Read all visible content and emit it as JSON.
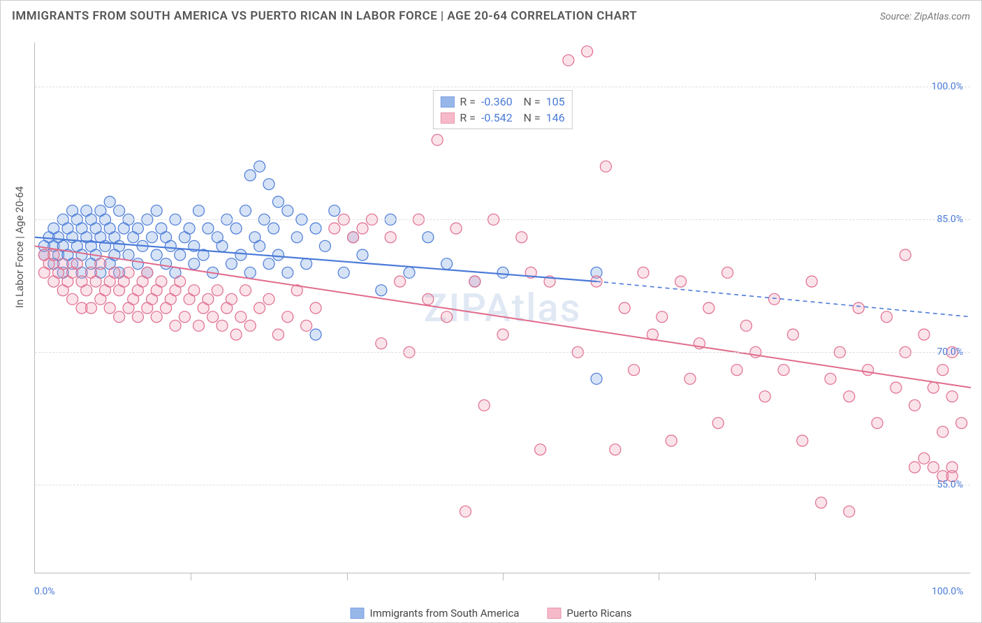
{
  "title": "IMMIGRANTS FROM SOUTH AMERICA VS PUERTO RICAN IN LABOR FORCE | AGE 20-64 CORRELATION CHART",
  "source": "Source: ZipAtlas.com",
  "watermark": "ZIPAtlas",
  "ylabel": "In Labor Force | Age 20-64",
  "chart": {
    "type": "scatter",
    "background_color": "#ffffff",
    "grid_color": "#dddddd",
    "xlim": [
      0,
      100
    ],
    "ylim": [
      45,
      105
    ],
    "xtick_labels": [
      {
        "v": 0,
        "label": "0.0%"
      },
      {
        "v": 100,
        "label": "100.0%"
      }
    ],
    "xtick_minor": [
      16.67,
      33.33,
      50,
      66.67,
      83.33
    ],
    "ytick_labels": [
      {
        "v": 55,
        "label": "55.0%"
      },
      {
        "v": 70,
        "label": "70.0%"
      },
      {
        "v": 85,
        "label": "85.0%"
      },
      {
        "v": 100,
        "label": "100.0%"
      }
    ],
    "marker_radius": 8,
    "marker_fill_opacity": 0.28,
    "marker_stroke_width": 1.2,
    "series": [
      {
        "name": "Immigrants from South America",
        "color": "#6c9ae0",
        "stroke": "#4a7ad8",
        "R": "-0.360",
        "N": "105",
        "trend": {
          "x1": 0,
          "y1": 83,
          "x2": 60,
          "y2": 78,
          "x2_dash": 100,
          "y2_dash": 74,
          "width": 2.2
        },
        "points": [
          [
            1,
            82
          ],
          [
            1,
            81
          ],
          [
            1.5,
            83
          ],
          [
            2,
            80
          ],
          [
            2,
            82
          ],
          [
            2,
            84
          ],
          [
            2.5,
            81
          ],
          [
            2.5,
            83
          ],
          [
            3,
            79
          ],
          [
            3,
            82
          ],
          [
            3,
            85
          ],
          [
            3.5,
            81
          ],
          [
            3.5,
            84
          ],
          [
            4,
            80
          ],
          [
            4,
            83
          ],
          [
            4,
            86
          ],
          [
            4.5,
            82
          ],
          [
            4.5,
            85
          ],
          [
            5,
            79
          ],
          [
            5,
            81
          ],
          [
            5,
            84
          ],
          [
            5.5,
            83
          ],
          [
            5.5,
            86
          ],
          [
            6,
            80
          ],
          [
            6,
            82
          ],
          [
            6,
            85
          ],
          [
            6.5,
            81
          ],
          [
            6.5,
            84
          ],
          [
            7,
            79
          ],
          [
            7,
            83
          ],
          [
            7,
            86
          ],
          [
            7.5,
            82
          ],
          [
            7.5,
            85
          ],
          [
            8,
            80
          ],
          [
            8,
            84
          ],
          [
            8,
            87
          ],
          [
            8.5,
            81
          ],
          [
            8.5,
            83
          ],
          [
            9,
            79
          ],
          [
            9,
            82
          ],
          [
            9,
            86
          ],
          [
            9.5,
            84
          ],
          [
            10,
            81
          ],
          [
            10,
            85
          ],
          [
            10.5,
            83
          ],
          [
            11,
            80
          ],
          [
            11,
            84
          ],
          [
            11.5,
            82
          ],
          [
            12,
            79
          ],
          [
            12,
            85
          ],
          [
            12.5,
            83
          ],
          [
            13,
            81
          ],
          [
            13,
            86
          ],
          [
            13.5,
            84
          ],
          [
            14,
            80
          ],
          [
            14,
            83
          ],
          [
            14.5,
            82
          ],
          [
            15,
            79
          ],
          [
            15,
            85
          ],
          [
            15.5,
            81
          ],
          [
            16,
            83
          ],
          [
            16.5,
            84
          ],
          [
            17,
            80
          ],
          [
            17,
            82
          ],
          [
            17.5,
            86
          ],
          [
            18,
            81
          ],
          [
            18.5,
            84
          ],
          [
            19,
            79
          ],
          [
            19.5,
            83
          ],
          [
            20,
            82
          ],
          [
            20.5,
            85
          ],
          [
            21,
            80
          ],
          [
            21.5,
            84
          ],
          [
            22,
            81
          ],
          [
            22.5,
            86
          ],
          [
            23,
            79
          ],
          [
            23,
            90
          ],
          [
            23.5,
            83
          ],
          [
            24,
            82
          ],
          [
            24,
            91
          ],
          [
            24.5,
            85
          ],
          [
            25,
            80
          ],
          [
            25,
            89
          ],
          [
            25.5,
            84
          ],
          [
            26,
            81
          ],
          [
            26,
            87
          ],
          [
            27,
            79
          ],
          [
            27,
            86
          ],
          [
            28,
            83
          ],
          [
            28.5,
            85
          ],
          [
            29,
            80
          ],
          [
            30,
            84
          ],
          [
            30,
            72
          ],
          [
            31,
            82
          ],
          [
            32,
            86
          ],
          [
            33,
            79
          ],
          [
            34,
            83
          ],
          [
            35,
            81
          ],
          [
            37,
            77
          ],
          [
            38,
            85
          ],
          [
            40,
            79
          ],
          [
            42,
            83
          ],
          [
            44,
            80
          ],
          [
            47,
            78
          ],
          [
            50,
            79
          ],
          [
            60,
            67
          ],
          [
            60,
            79
          ]
        ]
      },
      {
        "name": "Puerto Ricans",
        "color": "#f29cb3",
        "stroke": "#e06c8c",
        "R": "-0.542",
        "N": "146",
        "trend": {
          "x1": 0,
          "y1": 82,
          "x2": 100,
          "y2": 66,
          "width": 2
        },
        "points": [
          [
            1,
            81
          ],
          [
            1,
            79
          ],
          [
            1.5,
            80
          ],
          [
            2,
            78
          ],
          [
            2,
            81
          ],
          [
            2.5,
            79
          ],
          [
            3,
            77
          ],
          [
            3,
            80
          ],
          [
            3.5,
            78
          ],
          [
            4,
            76
          ],
          [
            4,
            79
          ],
          [
            4.5,
            80
          ],
          [
            5,
            75
          ],
          [
            5,
            78
          ],
          [
            5.5,
            77
          ],
          [
            6,
            79
          ],
          [
            6,
            75
          ],
          [
            6.5,
            78
          ],
          [
            7,
            76
          ],
          [
            7,
            80
          ],
          [
            7.5,
            77
          ],
          [
            8,
            75
          ],
          [
            8,
            78
          ],
          [
            8.5,
            79
          ],
          [
            9,
            74
          ],
          [
            9,
            77
          ],
          [
            9.5,
            78
          ],
          [
            10,
            75
          ],
          [
            10,
            79
          ],
          [
            10.5,
            76
          ],
          [
            11,
            77
          ],
          [
            11,
            74
          ],
          [
            11.5,
            78
          ],
          [
            12,
            75
          ],
          [
            12,
            79
          ],
          [
            12.5,
            76
          ],
          [
            13,
            77
          ],
          [
            13,
            74
          ],
          [
            13.5,
            78
          ],
          [
            14,
            75
          ],
          [
            14.5,
            76
          ],
          [
            15,
            77
          ],
          [
            15,
            73
          ],
          [
            15.5,
            78
          ],
          [
            16,
            74
          ],
          [
            16.5,
            76
          ],
          [
            17,
            77
          ],
          [
            17.5,
            73
          ],
          [
            18,
            75
          ],
          [
            18.5,
            76
          ],
          [
            19,
            74
          ],
          [
            19.5,
            77
          ],
          [
            20,
            73
          ],
          [
            20.5,
            75
          ],
          [
            21,
            76
          ],
          [
            21.5,
            72
          ],
          [
            22,
            74
          ],
          [
            22.5,
            77
          ],
          [
            23,
            73
          ],
          [
            24,
            75
          ],
          [
            25,
            76
          ],
          [
            26,
            72
          ],
          [
            27,
            74
          ],
          [
            28,
            77
          ],
          [
            29,
            73
          ],
          [
            30,
            75
          ],
          [
            32,
            84
          ],
          [
            33,
            85
          ],
          [
            34,
            83
          ],
          [
            35,
            84
          ],
          [
            36,
            85
          ],
          [
            37,
            71
          ],
          [
            38,
            83
          ],
          [
            39,
            78
          ],
          [
            40,
            70
          ],
          [
            41,
            85
          ],
          [
            42,
            76
          ],
          [
            43,
            94
          ],
          [
            44,
            74
          ],
          [
            45,
            84
          ],
          [
            46,
            52
          ],
          [
            47,
            78
          ],
          [
            48,
            64
          ],
          [
            49,
            85
          ],
          [
            50,
            72
          ],
          [
            52,
            83
          ],
          [
            53,
            79
          ],
          [
            54,
            59
          ],
          [
            55,
            78
          ],
          [
            57,
            103
          ],
          [
            58,
            70
          ],
          [
            59,
            104
          ],
          [
            60,
            78
          ],
          [
            61,
            91
          ],
          [
            62,
            59
          ],
          [
            63,
            75
          ],
          [
            64,
            68
          ],
          [
            65,
            79
          ],
          [
            66,
            72
          ],
          [
            67,
            74
          ],
          [
            68,
            60
          ],
          [
            69,
            78
          ],
          [
            70,
            67
          ],
          [
            71,
            71
          ],
          [
            72,
            75
          ],
          [
            73,
            62
          ],
          [
            74,
            79
          ],
          [
            75,
            68
          ],
          [
            76,
            73
          ],
          [
            77,
            70
          ],
          [
            78,
            65
          ],
          [
            79,
            76
          ],
          [
            80,
            68
          ],
          [
            81,
            72
          ],
          [
            82,
            60
          ],
          [
            83,
            78
          ],
          [
            84,
            53
          ],
          [
            85,
            67
          ],
          [
            86,
            70
          ],
          [
            87,
            65
          ],
          [
            87,
            52
          ],
          [
            88,
            75
          ],
          [
            89,
            68
          ],
          [
            90,
            62
          ],
          [
            91,
            74
          ],
          [
            92,
            66
          ],
          [
            93,
            70
          ],
          [
            93,
            81
          ],
          [
            94,
            57
          ],
          [
            94,
            64
          ],
          [
            95,
            72
          ],
          [
            95,
            58
          ],
          [
            96,
            66
          ],
          [
            96,
            57
          ],
          [
            97,
            68
          ],
          [
            97,
            61
          ],
          [
            97,
            56
          ],
          [
            98,
            70
          ],
          [
            98,
            65
          ],
          [
            98,
            57
          ],
          [
            98,
            56
          ],
          [
            99,
            62
          ]
        ]
      }
    ]
  },
  "legend": {
    "series1_label": "Immigrants from South America",
    "series2_label": "Puerto Ricans"
  }
}
